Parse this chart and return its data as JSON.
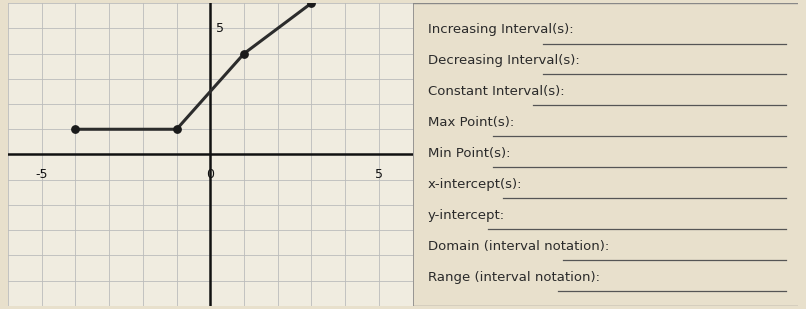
{
  "graph": {
    "points": [
      [
        -4,
        1
      ],
      [
        -1,
        1
      ],
      [
        1,
        4
      ],
      [
        3,
        6
      ]
    ],
    "xlim": [
      -6,
      6
    ],
    "ylim": [
      -6,
      6
    ],
    "line_color": "#2c2c2c",
    "dot_color": "#1a1a1a",
    "grid_color": "#bbbbbb",
    "graph_bg": "#f0ece0",
    "axis_color": "#111111"
  },
  "labels": [
    "Increasing Interval(s):",
    "Decreasing Interval(s):",
    "Constant Interval(s):",
    "Max Point(s):",
    "Min Point(s):",
    "x-intercept(s):",
    "y-intercept:",
    "Domain (interval notation):",
    "Range (interval notation):"
  ],
  "label_fontsize": 9.5,
  "label_color": "#2a2a2a",
  "panel_bg": "#f0ece0",
  "divider_color": "#888888",
  "underline_color": "#555555",
  "outer_bg": "#e8e0cc"
}
